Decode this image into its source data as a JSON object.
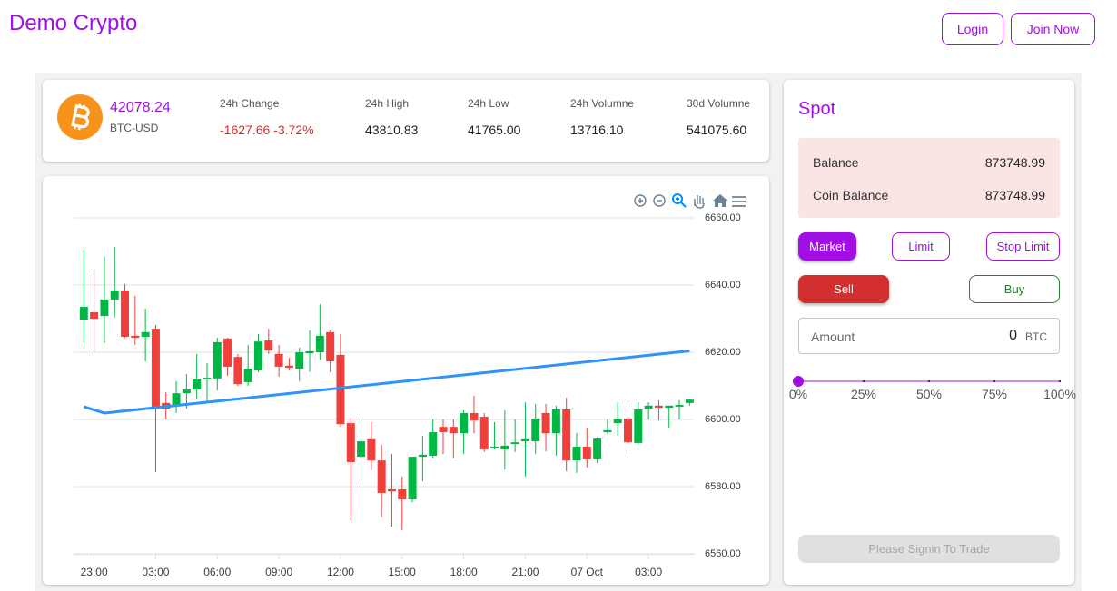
{
  "header": {
    "title": "Demo Crypto",
    "buttons": [
      "Login",
      "Join Now"
    ]
  },
  "ticker": {
    "price": "42078.24",
    "pair": "BTC-USD",
    "stats": [
      {
        "label": "24h Change",
        "value": "-1627.66",
        "change": "-3.72%"
      },
      {
        "label": "24h High",
        "value": "43810.83"
      },
      {
        "label": "24h Low",
        "value": "41765.00"
      },
      {
        "label": "24h Volumne",
        "value": "13716.10"
      },
      {
        "label": "30d Volumne",
        "value": "541075.60"
      }
    ]
  },
  "chart_data": {
    "type": "candlestick",
    "x": [
      0,
      0.5,
      1,
      1.5,
      2,
      2.5,
      3,
      3.5,
      4,
      4.5,
      5,
      5.5,
      6,
      6.5,
      7,
      7.5,
      8,
      8.5,
      9,
      9.5,
      10,
      10.5,
      11,
      11.5,
      12,
      12.5,
      13,
      13.5,
      14,
      14.5,
      15,
      15.5,
      16,
      16.5,
      17,
      17.5,
      18,
      18.5,
      19,
      19.5,
      20,
      20.5,
      21,
      21.5,
      22,
      22.5,
      23,
      23.5,
      24,
      24.5,
      25,
      25.5,
      26,
      26.5,
      27,
      27.5,
      28,
      28.5,
      29,
      29.5
    ],
    "series": [
      {
        "type": "candlestick",
        "up_color": "#00b746",
        "down_color": "#ef403c",
        "open": [
          6629.7,
          6631.9,
          6630.8,
          6635.7,
          6638.4,
          6624.9,
          6624.6,
          6627.0,
          6604.9,
          6604.3,
          6607.8,
          6608.9,
          6611.9,
          6612.2,
          6624.1,
          6618.6,
          6611.1,
          6614.6,
          6623.5,
          6619.5,
          6616.0,
          6615.1,
          6619.7,
          6620.0,
          6626.0,
          6619.2,
          6598.9,
          6588.9,
          6594.1,
          6587.8,
          6579.2,
          6579.2,
          6576.2,
          6588.9,
          6589.2,
          6597.8,
          6597.8,
          6595.9,
          6601.9,
          6600.8,
          6591.4,
          6591.1,
          6592.7,
          6593.5,
          6593.5,
          6601.9,
          6595.9,
          6603.0,
          6587.8,
          6591.9,
          6588.1,
          6596.2,
          6598.9,
          6600.3,
          6593.0,
          6603.2,
          6604.1,
          6603.5,
          6603.8,
          6604.9
        ],
        "high": [
          6650.5,
          6644.6,
          6648.6,
          6651.4,
          6640.3,
          6636.8,
          6633.0,
          6628.1,
          6608.1,
          6611.4,
          6613.5,
          6619.5,
          6616.8,
          6624.3,
          6624.3,
          6619.5,
          6622.2,
          6625.4,
          6627.0,
          6622.2,
          6618.4,
          6621.4,
          6626.5,
          6634.3,
          6626.5,
          6625.4,
          6600.5,
          6600.0,
          6599.2,
          6592.4,
          6589.7,
          6583.0,
          6588.9,
          6595.1,
          6600.0,
          6600.0,
          6600.0,
          6602.7,
          6607.0,
          6601.9,
          6599.2,
          6602.7,
          6600.0,
          6605.1,
          6604.6,
          6604.6,
          6604.1,
          6606.5,
          6596.0,
          6597.3,
          6594.6,
          6600.0,
          6605.1,
          6605.7,
          6605.1,
          6605.1,
          6605.7,
          6604.1,
          6605.7,
          6605.9
        ],
        "low": [
          6622.7,
          6620.0,
          6622.7,
          6630.3,
          6624.3,
          6622.2,
          6617.3,
          6584.3,
          6600.0,
          6601.9,
          6603.2,
          6605.9,
          6605.1,
          6608.6,
          6613.0,
          6610.0,
          6610.0,
          6614.1,
          6619.5,
          6612.7,
          6614.6,
          6611.4,
          6614.1,
          6617.8,
          6614.1,
          6597.8,
          6570.0,
          6581.6,
          6584.9,
          6570.8,
          6568.1,
          6567.0,
          6575.4,
          6581.6,
          6588.4,
          6589.7,
          6588.4,
          6589.7,
          6595.9,
          6590.3,
          6591.1,
          6585.1,
          6590.3,
          6583.0,
          6589.7,
          6590.5,
          6589.2,
          6584.6,
          6584.1,
          6585.7,
          6587.0,
          6595.7,
          6595.1,
          6589.7,
          6592.4,
          6600.0,
          6599.7,
          6597.3,
          6600.0,
          6604.1
        ],
        "close": [
          6633.5,
          6630.0,
          6635.7,
          6638.4,
          6624.6,
          6624.3,
          6626.0,
          6603.2,
          6603.2,
          6607.8,
          6608.9,
          6611.9,
          6612.4,
          6623.0,
          6615.7,
          6610.5,
          6615.1,
          6623.2,
          6620.5,
          6615.7,
          6615.4,
          6620.0,
          6620.3,
          6624.9,
          6617.3,
          6598.6,
          6587.3,
          6593.5,
          6587.8,
          6578.1,
          6578.6,
          6576.2,
          6588.9,
          6589.5,
          6596.2,
          6596.2,
          6595.9,
          6601.9,
          6599.7,
          6591.1,
          6591.9,
          6592.2,
          6593.2,
          6594.1,
          6600.3,
          6595.9,
          6603.0,
          6587.8,
          6591.9,
          6588.1,
          6594.3,
          6596.8,
          6600.0,
          6593.2,
          6603.0,
          6604.1,
          6603.5,
          6604.1,
          6604.3,
          6605.9
        ]
      },
      {
        "type": "line",
        "color": "#2e93fa",
        "x": [
          0,
          1,
          29.5
        ],
        "values": [
          6603.8,
          6601.9,
          6620.4
        ]
      }
    ],
    "xlim": [
      -0.5,
      29.75
    ],
    "xticks": [
      {
        "value": 0.5,
        "label": "23:00"
      },
      {
        "value": 3.5,
        "label": "03:00"
      },
      {
        "value": 6.5,
        "label": "06:00"
      },
      {
        "value": 9.5,
        "label": "09:00"
      },
      {
        "value": 12.5,
        "label": "12:00"
      },
      {
        "value": 15.5,
        "label": "15:00"
      },
      {
        "value": 18.5,
        "label": "18:00"
      },
      {
        "value": 21.5,
        "label": "21:00"
      },
      {
        "value": 24.5,
        "label": "07 Oct"
      },
      {
        "value": 27.5,
        "label": "03:00"
      }
    ],
    "ylim": [
      6560,
      6660
    ],
    "yticks": [
      {
        "value": 6660,
        "label": "6660.00"
      },
      {
        "value": 6640,
        "label": "6640.00"
      },
      {
        "value": 6620,
        "label": "6620.00"
      },
      {
        "value": 6600,
        "label": "6600.00"
      },
      {
        "value": 6580,
        "label": "6580.00"
      },
      {
        "value": 6560,
        "label": "6560.00"
      }
    ],
    "grid": true
  },
  "spot": {
    "title": "Spot",
    "balances": [
      {
        "label": "Balance",
        "value": "873748.99"
      },
      {
        "label": "Coin Balance",
        "value": "873748.99"
      }
    ],
    "order_types": [
      "Market",
      "Limit",
      "Stop Limit"
    ],
    "sides": [
      "Sell",
      "Buy"
    ],
    "amount": {
      "label": "Amount",
      "value": "0",
      "unit": "BTC"
    },
    "slider_marks": [
      "0%",
      "25%",
      "50%",
      "75%",
      "100%"
    ],
    "submit": "Please Signin To Trade"
  }
}
